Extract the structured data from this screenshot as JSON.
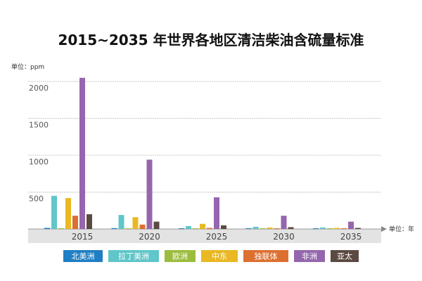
{
  "chart_data": {
    "type": "bar",
    "title": "2015~2035 年世界各地区清洁柴油含硫量标准",
    "ylabel": "单位：ppm",
    "xlabel": "单位：年",
    "categories": [
      "2015",
      "2020",
      "2025",
      "2030",
      "2035"
    ],
    "ylim": [
      0,
      2100
    ],
    "yticks": [
      500,
      1000,
      1500,
      2000
    ],
    "grid": true,
    "legend_position": "bottom",
    "series": [
      {
        "name": "北美洲",
        "color": "#1f7fc4",
        "values": [
          15,
          12,
          10,
          10,
          10
        ]
      },
      {
        "name": "拉丁美洲",
        "color": "#5fc6c9",
        "values": [
          450,
          190,
          40,
          30,
          20
        ]
      },
      {
        "name": "欧洲",
        "color": "#9cbc3f",
        "values": [
          10,
          10,
          10,
          10,
          10
        ]
      },
      {
        "name": "中东",
        "color": "#e9b823",
        "values": [
          420,
          160,
          70,
          20,
          15
        ]
      },
      {
        "name": "独联体",
        "color": "#dd7030",
        "values": [
          180,
          60,
          15,
          10,
          10
        ]
      },
      {
        "name": "非洲",
        "color": "#9566ad",
        "values": [
          2050,
          940,
          430,
          180,
          100
        ]
      },
      {
        "name": "亚太",
        "color": "#5b4a42",
        "values": [
          200,
          100,
          50,
          25,
          15
        ]
      }
    ]
  }
}
